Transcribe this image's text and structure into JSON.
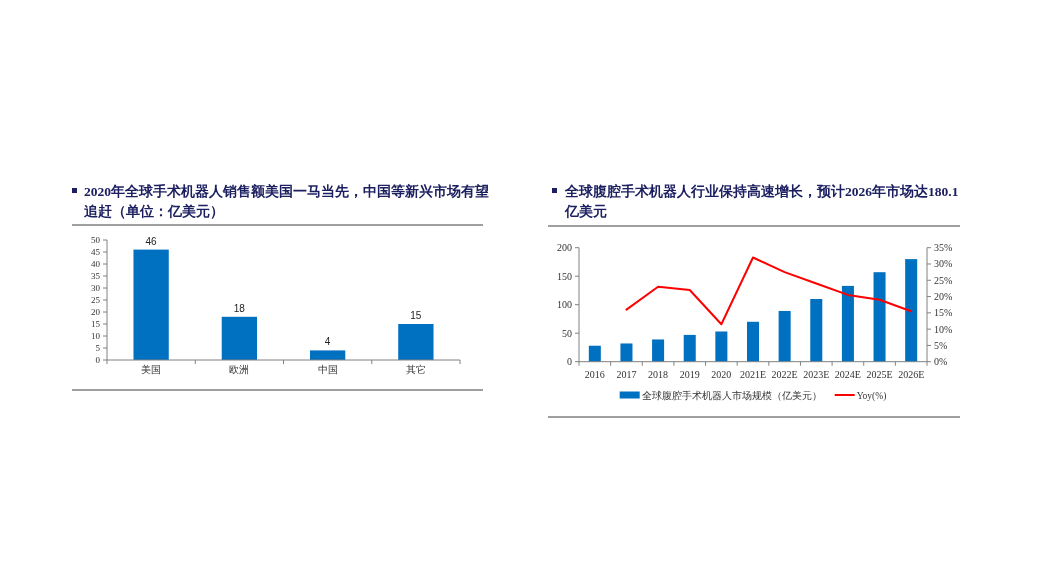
{
  "chart_data": [
    {
      "type": "bar",
      "title": "2020年全球手术机器人销售额美国一马当先，中国等新兴市场有望追赶（单位：亿美元）",
      "categories": [
        "美国",
        "欧洲",
        "中国",
        "其它"
      ],
      "values": [
        46,
        18,
        4,
        15
      ],
      "color": "#0070c0",
      "ylim": [
        0,
        50
      ],
      "yticks": [
        0,
        5,
        10,
        15,
        20,
        25,
        30,
        35,
        40,
        45,
        50
      ],
      "data_labels": true
    },
    {
      "type": "bar",
      "title": "全球腹腔手术机器人行业保持高速增长，预计2026年市场达180.1亿美元",
      "categories": [
        "2016",
        "2017",
        "2018",
        "2019",
        "2020",
        "2021E",
        "2022E",
        "2023E",
        "2024E",
        "2025E",
        "2026E"
      ],
      "series": [
        {
          "name": "全球腹腔手术机器人市场规模（亿美元）",
          "color": "#0070c0",
          "values": [
            28,
            32,
            39,
            47,
            53,
            70,
            89,
            110,
            133,
            157,
            180
          ]
        },
        {
          "name": "Yoy(%)",
          "type": "line",
          "axis": "y2",
          "color": "#ff0000",
          "values": [
            null,
            16,
            23,
            22,
            11.5,
            32,
            27.5,
            24,
            20.5,
            19,
            15.5
          ]
        }
      ],
      "ylim": [
        0,
        200
      ],
      "yticks": [
        0,
        50,
        100,
        150,
        200
      ],
      "y2lim": [
        0,
        35
      ],
      "y2ticks": [
        {
          "value": 0,
          "label": "0%"
        },
        {
          "value": 5,
          "label": "5%"
        },
        {
          "value": 10,
          "label": "10%"
        },
        {
          "value": 15,
          "label": "15%"
        },
        {
          "value": 20,
          "label": "20%"
        },
        {
          "value": 25,
          "label": "25%"
        },
        {
          "value": 30,
          "label": "30%"
        },
        {
          "value": 35,
          "label": "35%"
        }
      ],
      "legend": "bottom"
    }
  ]
}
